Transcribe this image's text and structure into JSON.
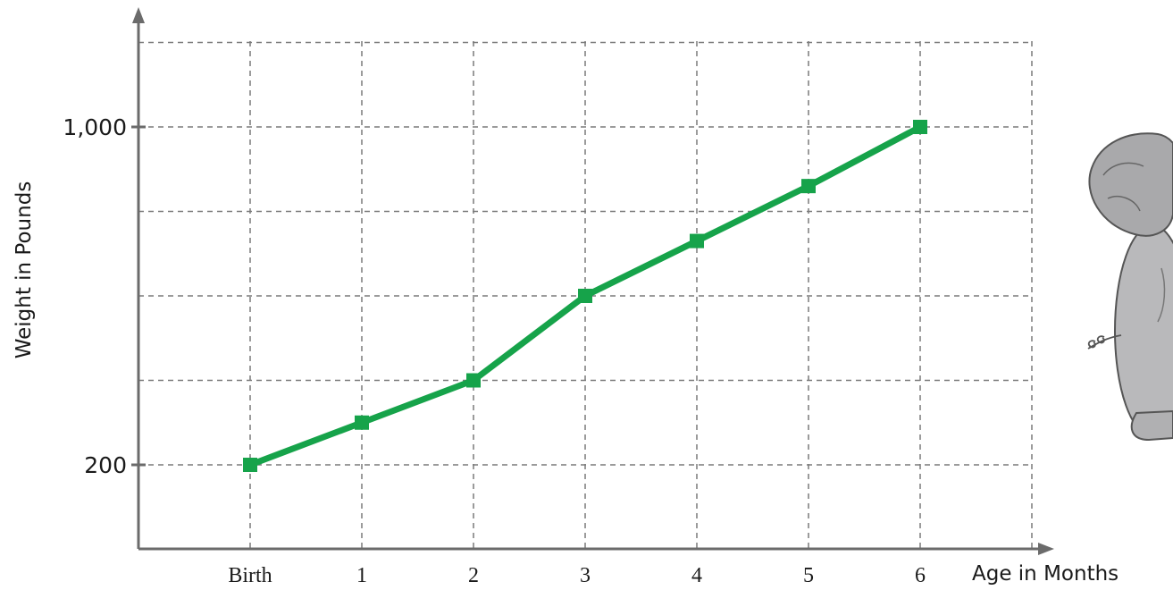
{
  "chart_data": {
    "type": "line",
    "title": "",
    "xlabel": "Age in Months",
    "ylabel": "Weight in Pounds",
    "categories": [
      "Birth",
      "1",
      "2",
      "3",
      "4",
      "5",
      "6"
    ],
    "y_tick_labels": [
      "200",
      "1,000"
    ],
    "y_tick_values": [
      200,
      1000
    ],
    "ylim": [
      0,
      1200
    ],
    "grid": true,
    "series": [
      {
        "values": [
          200,
          300,
          400,
          600,
          730,
          860,
          1000
        ],
        "color": "#16a34a"
      }
    ]
  },
  "colors": {
    "axis": "#6b6b6b",
    "grid": "#7a7a7a",
    "line": "#16a34a"
  },
  "illustration": {
    "icon": "elephant-icon"
  }
}
